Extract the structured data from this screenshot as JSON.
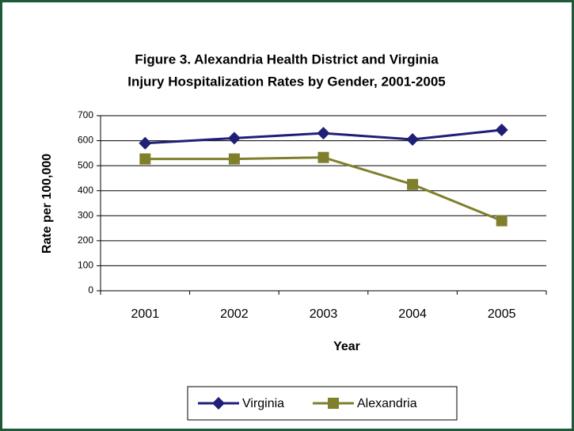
{
  "chart_data": {
    "type": "line",
    "title": [
      "Figure 3. Alexandria Health District and Virginia",
      "Injury Hospitalization Rates by Gender, 2001-2005"
    ],
    "x_label": "Year",
    "y_label": "Rate per 100,000",
    "categories": [
      "2001",
      "2002",
      "2003",
      "2004",
      "2005"
    ],
    "series": [
      {
        "name": "Virginia",
        "color": "#1f1f78",
        "marker": "diamond",
        "values": [
          590,
          610,
          630,
          605,
          643
        ]
      },
      {
        "name": "Alexandria",
        "color": "#7f7f2c",
        "marker": "square",
        "values": [
          527,
          527,
          533,
          425,
          280
        ]
      }
    ],
    "ylim": [
      0,
      700
    ],
    "yticks": [
      0,
      100,
      200,
      300,
      400,
      500,
      600,
      700
    ],
    "grid": true,
    "legend": "bottom"
  }
}
